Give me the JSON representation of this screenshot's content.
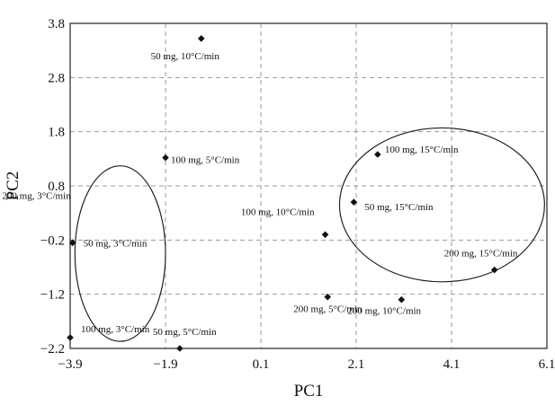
{
  "chart_data": {
    "type": "scatter",
    "xlabel": "PC1",
    "ylabel": "PC2",
    "xlim": [
      -3.9,
      6.1
    ],
    "ylim": [
      -2.2,
      3.8
    ],
    "xticks": [
      "-3.9",
      "-1.9",
      "0.1",
      "2.1",
      "4.1",
      "6.1"
    ],
    "yticks": [
      "3.8",
      "2.8",
      "1.8",
      "0.8",
      "-0.2",
      "-1.2",
      "-2.2"
    ],
    "xtick_values": [
      -3.9,
      -1.9,
      0.1,
      2.1,
      4.1,
      6.1
    ],
    "ytick_values": [
      3.8,
      2.8,
      1.8,
      0.8,
      -0.2,
      -1.2,
      -2.2
    ],
    "grid": true,
    "points": [
      {
        "label": "50 mg, 10°C/min",
        "x": -1.15,
        "y": 3.52
      },
      {
        "label": "100 mg, 5°C/min",
        "x": -1.9,
        "y": 1.32
      },
      {
        "label": "100 mg, 15°C/min",
        "x": 2.55,
        "y": 1.38
      },
      {
        "label": "200 mg, 3°C/min",
        "x": -3.85,
        "y": -0.25
      },
      {
        "label": "50 mg, 3°C/min",
        "x": -3.85,
        "y": -0.25
      },
      {
        "label": "100 mg, 10°C/min",
        "x": 1.45,
        "y": -0.1
      },
      {
        "label": "50 mg, 15°C/min",
        "x": 2.05,
        "y": 0.5
      },
      {
        "label": "200 mg, 15°C/min",
        "x": 5.0,
        "y": -0.75
      },
      {
        "label": "200 mg, 5°C/min",
        "x": 1.5,
        "y": -1.25
      },
      {
        "label": "200 mg, 10°C/min",
        "x": 3.05,
        "y": -1.3
      },
      {
        "label": "100 mg, 3°C/min",
        "x": -3.9,
        "y": -2.0
      },
      {
        "label": "50 mg, 5°C/min",
        "x": -1.6,
        "y": -2.2
      }
    ],
    "ellipses": [
      {
        "cx": -2.85,
        "cy": -0.45,
        "rx": 0.95,
        "ry": 1.62
      },
      {
        "cx": 3.9,
        "cy": 0.45,
        "rx": 2.15,
        "ry": 1.42
      }
    ]
  }
}
